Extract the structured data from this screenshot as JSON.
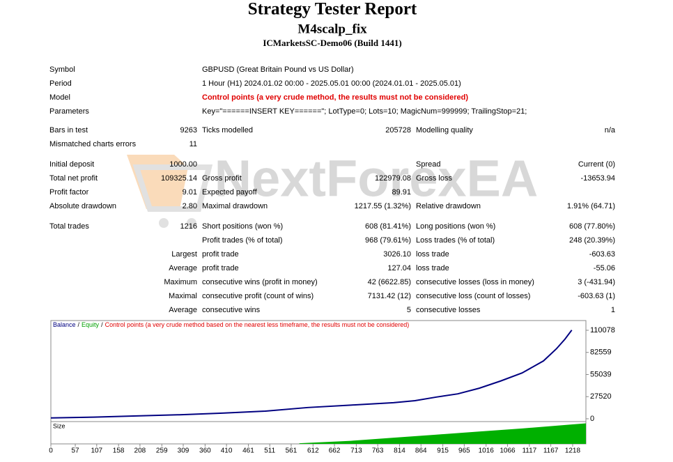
{
  "header": {
    "title": "Strategy Tester Report",
    "subtitle": "M4scalp_fix",
    "server": "ICMarketsSC-Demo06 (Build 1441)"
  },
  "info": [
    [
      "Symbol",
      "GBPUSD (Great Britain Pound vs US Dollar)"
    ],
    [
      "Period",
      "1 Hour (H1) 2024.01.02 00:00 - 2025.05.01 00:00 (2024.01.01 - 2025.05.01)"
    ],
    [
      "Model",
      "Control points (a very crude method, the results must not be considered)"
    ],
    [
      "Parameters",
      "Key=\"======INSERT KEY======\"; LotType=0; Lots=10; MagicNum=999999; TrailingStop=21;"
    ]
  ],
  "stats": [
    [
      [
        "Bars in test",
        "9263",
        "Ticks modelled",
        "205728",
        "Modelling quality",
        "n/a"
      ],
      [
        "Mismatched charts errors",
        "11",
        null,
        null,
        null,
        null
      ]
    ],
    [
      [
        "Initial deposit",
        "1000.00",
        null,
        null,
        "Spread",
        "Current (0)"
      ],
      [
        "Total net profit",
        "109325.14",
        "Gross profit",
        "122979.08",
        "Gross loss",
        "-13653.94"
      ],
      [
        "Profit factor",
        "9.01",
        "Expected payoff",
        "89.91",
        null,
        null
      ],
      [
        "Absolute drawdown",
        "2.80",
        "Maximal drawdown",
        "1217.55 (1.32%)",
        "Relative drawdown",
        "1.91% (64.71)"
      ]
    ],
    [
      [
        "Total trades",
        "1216",
        "Short positions (won %)",
        "608 (81.41%)",
        "Long positions (won %)",
        "608 (77.80%)"
      ],
      [
        null,
        null,
        "Profit trades (% of total)",
        "968 (79.61%)",
        "Loss trades (% of total)",
        "248 (20.39%)"
      ],
      [
        null,
        "Largest",
        "profit trade",
        "3026.10",
        "loss trade",
        "-603.63"
      ],
      [
        null,
        "Average",
        "profit trade",
        "127.04",
        "loss trade",
        "-55.06"
      ],
      [
        null,
        "Maximum",
        "consecutive wins (profit in money)",
        "42 (6622.85)",
        "consecutive losses (loss in money)",
        "3 (-431.94)"
      ],
      [
        null,
        "Maximal",
        "consecutive profit (count of wins)",
        "7131.42 (12)",
        "consecutive loss (count of losses)",
        "-603.63 (1)"
      ],
      [
        null,
        "Average",
        "consecutive wins",
        "5",
        "consecutive losses",
        "1"
      ]
    ]
  ],
  "watermark": "NextForexEA",
  "chart_data": {
    "type": "line",
    "legend": [
      {
        "name": "Balance",
        "color": "#000080"
      },
      {
        "name": "Equity",
        "color": "#00a000"
      },
      {
        "name": "Control points (a very crude method based on the nearest less timeframe, the results must not be considered)",
        "color": "#e00000"
      }
    ],
    "legend_separator": "/",
    "x": [
      0,
      100,
      200,
      300,
      400,
      500,
      600,
      700,
      800,
      850,
      900,
      950,
      1000,
      1050,
      1100,
      1150,
      1180,
      1200,
      1216
    ],
    "series": [
      {
        "name": "Balance",
        "color": "#000080",
        "values": [
          1000,
          2000,
          3500,
          5000,
          7000,
          9500,
          14000,
          17000,
          20000,
          22500,
          27000,
          31000,
          38000,
          47000,
          57000,
          72000,
          87000,
          99000,
          110325
        ]
      }
    ],
    "xlim": [
      0,
      1249
    ],
    "ylim": [
      -3500,
      122200
    ],
    "xticks": [
      0,
      57,
      107,
      158,
      208,
      259,
      309,
      360,
      410,
      461,
      511,
      561,
      612,
      662,
      713,
      763,
      814,
      864,
      915,
      965,
      1016,
      1066,
      1117,
      1167,
      1218
    ],
    "yticks": [
      0,
      27520,
      55039,
      82559,
      110078
    ],
    "size_label": "Size",
    "size": {
      "color": "#00b000",
      "x": [
        580,
        700,
        800,
        900,
        1000,
        1100,
        1218,
        1249
      ],
      "values": [
        0.03,
        0.15,
        0.3,
        0.45,
        0.6,
        0.75,
        0.95,
        1.0
      ],
      "ylim": [
        0,
        1.05
      ]
    }
  }
}
